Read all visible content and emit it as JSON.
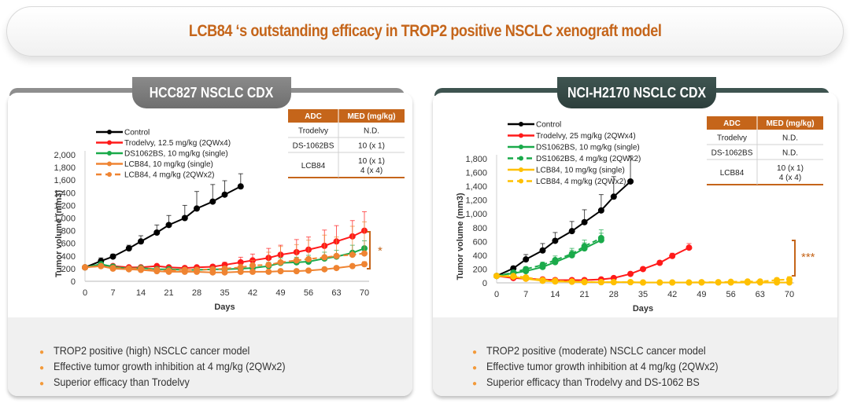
{
  "page": {
    "title": "LCB84 ‘s outstanding efficacy in TROP2 positive NSCLC xenograft model"
  },
  "colors": {
    "accent": "#c5651a",
    "control": "#000000",
    "trodelvy": "#ff1a1a",
    "ds1062bs": "#1aaa4a",
    "lcb84_panel1": "#ef8432",
    "lcb84_panel2": "#ffc000",
    "bullet": "#f39a3a"
  },
  "panels": [
    {
      "title": "HCC827 NSCLC CDX",
      "table": {
        "headers": [
          "ADC",
          "MED (mg/kg)"
        ],
        "rows": [
          {
            "adc": "Trodelvy",
            "med": [
              "N.D."
            ]
          },
          {
            "adc": "DS-1062BS",
            "med": [
              "10 (x 1)"
            ]
          },
          {
            "adc": "LCB84",
            "med": [
              "10 (x 1)",
              "4 (x 4)"
            ]
          }
        ]
      },
      "bullets": [
        "TROP2 positive (high) NSCLC cancer model",
        "Effective tumor growth inhibition at 4 mg/kg (2QWx2)",
        "Superior efficacy than Trodelvy"
      ]
    },
    {
      "title": "NCI-H2170 NSCLC CDX",
      "table": {
        "headers": [
          "ADC",
          "MED (mg/kg)"
        ],
        "rows": [
          {
            "adc": "Trodelvy",
            "med": [
              "N.D."
            ]
          },
          {
            "adc": "DS-1062BS",
            "med": [
              "N.D."
            ]
          },
          {
            "adc": "LCB84",
            "med": [
              "10 (x 1)",
              "4 (x 4)"
            ]
          }
        ]
      },
      "bullets": [
        "TROP2 positive (moderate) NSCLC cancer model",
        "Effective tumor growth inhibition at 4 mg/kg (2QWx2)",
        "Superior efficacy than Trodelvy and DS-1062 BS"
      ]
    }
  ],
  "chart_data": [
    {
      "type": "line",
      "title": "HCC827 NSCLC CDX",
      "xlabel": "Days",
      "ylabel": "Tumor volume (mm3)",
      "xlim": [
        0,
        70
      ],
      "ylim": [
        0,
        2000
      ],
      "xticks": [
        0,
        7,
        14,
        21,
        28,
        35,
        42,
        49,
        56,
        63,
        70
      ],
      "yticks": [
        0,
        200,
        400,
        600,
        800,
        1000,
        1200,
        1400,
        1600,
        1800,
        2000
      ],
      "ytick_labels": [
        "0",
        "200",
        "400",
        "600",
        "800",
        "1,000",
        "1,200",
        "1,400",
        "1,600",
        "1,800",
        "2,000"
      ],
      "grid": false,
      "legend_position": "top-left",
      "significance": "*",
      "series": [
        {
          "name": "Control",
          "color": "#000000",
          "dashed": false,
          "x": [
            0,
            4,
            7,
            11,
            14,
            18,
            21,
            25,
            28,
            32,
            35,
            39
          ],
          "y": [
            220,
            320,
            390,
            520,
            630,
            770,
            890,
            1000,
            1150,
            1260,
            1370,
            1500
          ],
          "err": [
            0,
            50,
            40,
            50,
            90,
            120,
            150,
            200,
            270,
            270,
            220,
            200
          ]
        },
        {
          "name": "Trodelvy, 12.5 mg/kg (2QWx4)",
          "color": "#ff1a1a",
          "dashed": false,
          "x": [
            0,
            4,
            7,
            11,
            14,
            18,
            21,
            25,
            28,
            32,
            35,
            39,
            42,
            46,
            49,
            53,
            56,
            60,
            63,
            67,
            70
          ],
          "y": [
            220,
            250,
            240,
            220,
            220,
            240,
            220,
            210,
            220,
            230,
            260,
            300,
            330,
            370,
            420,
            460,
            500,
            560,
            630,
            710,
            800
          ],
          "err": [
            0,
            20,
            20,
            20,
            20,
            20,
            20,
            20,
            20,
            30,
            40,
            80,
            100,
            150,
            150,
            200,
            200,
            250,
            250,
            250,
            300
          ]
        },
        {
          "name": "DS1062BS, 10 mg/kg (single)",
          "color": "#1aaa4a",
          "dashed": false,
          "x": [
            0,
            4,
            7,
            11,
            14,
            18,
            21,
            25,
            28,
            32,
            35,
            39,
            42,
            46,
            49,
            53,
            56,
            60,
            63,
            67,
            70
          ],
          "y": [
            220,
            270,
            230,
            200,
            210,
            190,
            190,
            180,
            180,
            190,
            190,
            200,
            210,
            240,
            290,
            300,
            310,
            360,
            390,
            450,
            520
          ],
          "err": [
            0,
            20,
            20,
            20,
            20,
            20,
            20,
            20,
            20,
            20,
            20,
            30,
            40,
            60,
            80,
            80,
            100,
            100,
            100,
            120,
            120
          ]
        },
        {
          "name": "LCB84, 10 mg/kg (single)",
          "color": "#ef8432",
          "dashed": false,
          "x": [
            0,
            4,
            7,
            11,
            14,
            18,
            21,
            25,
            28,
            32,
            35,
            39,
            42,
            46,
            49,
            53,
            56,
            60,
            63,
            67,
            70
          ],
          "y": [
            220,
            240,
            200,
            190,
            180,
            160,
            150,
            150,
            150,
            140,
            140,
            150,
            150,
            150,
            160,
            160,
            170,
            190,
            210,
            240,
            270
          ],
          "err": [
            0,
            20,
            20,
            20,
            20,
            20,
            20,
            20,
            20,
            20,
            20,
            20,
            20,
            20,
            20,
            20,
            20,
            20,
            30,
            30,
            40
          ]
        },
        {
          "name": "LCB84, 4 mg/kg (2QWx2)",
          "color": "#ef8432",
          "dashed": true,
          "x": [
            0,
            4,
            7,
            11,
            14,
            18,
            21,
            25,
            28,
            32,
            35,
            39,
            42,
            46,
            49,
            53,
            56,
            60,
            63,
            67,
            70
          ],
          "y": [
            220,
            240,
            210,
            200,
            200,
            180,
            170,
            180,
            180,
            190,
            200,
            220,
            250,
            260,
            300,
            330,
            350,
            380,
            400,
            420,
            440
          ],
          "err": [
            0,
            20,
            20,
            20,
            20,
            20,
            20,
            20,
            20,
            20,
            30,
            50,
            80,
            200,
            250,
            250,
            300,
            350,
            300,
            450,
            500
          ]
        }
      ]
    },
    {
      "type": "line",
      "title": "NCI-H2170 NSCLC CDX",
      "xlabel": "Days",
      "ylabel": "Tumor volume (mm3)",
      "xlim": [
        0,
        70
      ],
      "ylim": [
        0,
        1800
      ],
      "xticks": [
        0,
        7,
        14,
        21,
        28,
        35,
        42,
        49,
        56,
        63,
        70
      ],
      "yticks": [
        0,
        200,
        400,
        600,
        800,
        1000,
        1200,
        1400,
        1600,
        1800
      ],
      "ytick_labels": [
        "0",
        "200",
        "400",
        "600",
        "800",
        "1,000",
        "1,200",
        "1,400",
        "1,600",
        "1,800"
      ],
      "grid": false,
      "legend_position": "top-left",
      "significance": "***",
      "series": [
        {
          "name": "Control",
          "color": "#000000",
          "dashed": false,
          "x": [
            0,
            4,
            7,
            11,
            14,
            18,
            21,
            25,
            28,
            32
          ],
          "y": [
            100,
            210,
            340,
            470,
            610,
            750,
            880,
            1050,
            1250,
            1470
          ],
          "err": [
            0,
            30,
            70,
            100,
            120,
            140,
            180,
            230,
            290,
            370
          ]
        },
        {
          "name": "Trodelvy, 25 mg/kg (2QWx4)",
          "color": "#ff1a1a",
          "dashed": false,
          "x": [
            0,
            4,
            7,
            11,
            14,
            18,
            21,
            25,
            28,
            32,
            35,
            39,
            42,
            46
          ],
          "y": [
            100,
            70,
            60,
            50,
            40,
            40,
            40,
            50,
            70,
            130,
            200,
            290,
            390,
            510
          ],
          "err": [
            0,
            10,
            10,
            10,
            10,
            10,
            10,
            10,
            15,
            20,
            25,
            30,
            40,
            60
          ]
        },
        {
          "name": "DS1062BS, 10 mg/kg (single)",
          "color": "#1aaa4a",
          "dashed": false,
          "x": [
            0,
            4,
            7,
            11,
            14,
            18,
            21,
            25
          ],
          "y": [
            100,
            140,
            170,
            230,
            300,
            400,
            500,
            620
          ],
          "err": [
            0,
            20,
            30,
            40,
            50,
            70,
            80,
            100
          ]
        },
        {
          "name": "DS1062BS, 4 mg/kg (2QWx2)",
          "color": "#1aaa4a",
          "dashed": true,
          "x": [
            0,
            4,
            7,
            11,
            14,
            18,
            21,
            25
          ],
          "y": [
            100,
            150,
            200,
            260,
            330,
            420,
            530,
            650
          ],
          "err": [
            0,
            20,
            30,
            40,
            60,
            80,
            90,
            120
          ]
        },
        {
          "name": "LCB84, 10 mg/kg (single)",
          "color": "#ffc000",
          "dashed": false,
          "x": [
            0,
            4,
            7,
            11,
            14,
            18,
            21,
            25,
            28,
            32,
            35,
            39,
            42,
            46,
            49,
            53,
            56,
            60,
            63,
            67,
            70
          ],
          "y": [
            100,
            90,
            60,
            30,
            20,
            15,
            10,
            10,
            10,
            10,
            5,
            5,
            5,
            5,
            5,
            5,
            5,
            5,
            5,
            5,
            5
          ],
          "err": [
            0,
            10,
            10,
            10,
            5,
            5,
            5,
            5,
            5,
            5,
            5,
            5,
            5,
            5,
            5,
            5,
            5,
            5,
            5,
            5,
            5
          ]
        },
        {
          "name": "LCB84, 4 mg/kg (2QWx2)",
          "color": "#ffc000",
          "dashed": true,
          "x": [
            0,
            4,
            7,
            11,
            14,
            18,
            21,
            25,
            28,
            32,
            35,
            39,
            42,
            46,
            49,
            53,
            56,
            60,
            63,
            67,
            70
          ],
          "y": [
            100,
            100,
            80,
            40,
            30,
            20,
            15,
            10,
            10,
            10,
            5,
            5,
            5,
            5,
            10,
            10,
            15,
            20,
            20,
            40,
            50
          ],
          "err": [
            0,
            10,
            10,
            10,
            5,
            5,
            5,
            5,
            5,
            5,
            5,
            5,
            5,
            5,
            10,
            10,
            15,
            20,
            20,
            30,
            40
          ]
        }
      ]
    }
  ]
}
